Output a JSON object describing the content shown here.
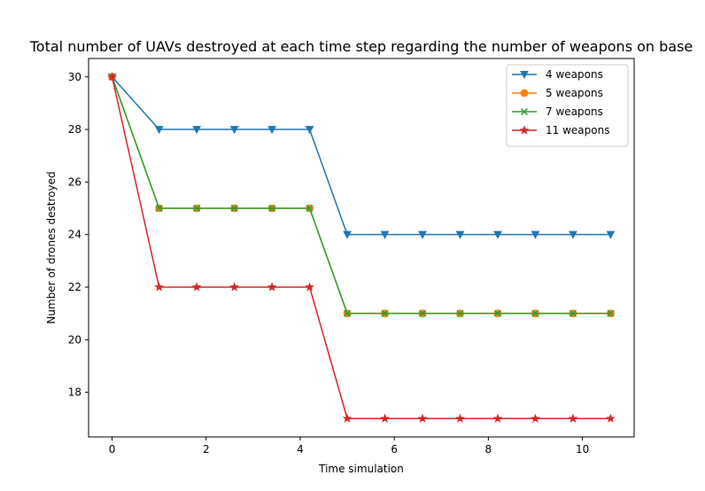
{
  "chart_data": {
    "type": "line",
    "title": "Total number of UAVs destroyed at each time step regarding the number of weapons on base",
    "xlabel": "Time simulation",
    "ylabel": "Number of drones destroyed",
    "xlim": [
      -0.5,
      11.1
    ],
    "ylim": [
      16.3,
      30.7
    ],
    "xticks": [
      0,
      2,
      4,
      6,
      8,
      10
    ],
    "yticks": [
      18,
      20,
      22,
      24,
      26,
      28,
      30
    ],
    "x": [
      0,
      1,
      1.8,
      2.6,
      3.4,
      4.2,
      5,
      5.8,
      6.6,
      7.4,
      8.2,
      9,
      9.8,
      10.6
    ],
    "legend_position": "top-right",
    "grid": false,
    "series": [
      {
        "name": "4 weapons",
        "color": "#1f77b4",
        "marker": "triangle-down",
        "values": [
          30,
          28,
          28,
          28,
          28,
          28,
          24,
          24,
          24,
          24,
          24,
          24,
          24,
          24
        ]
      },
      {
        "name": "5 weapons",
        "color": "#ff7f0e",
        "marker": "circle",
        "values": [
          30,
          25,
          25,
          25,
          25,
          25,
          21,
          21,
          21,
          21,
          21,
          21,
          21,
          21
        ]
      },
      {
        "name": "7 weapons",
        "color": "#2ca02c",
        "marker": "x",
        "values": [
          30,
          25,
          25,
          25,
          25,
          25,
          21,
          21,
          21,
          21,
          21,
          21,
          21,
          21
        ]
      },
      {
        "name": "11 weapons",
        "color": "#d62728",
        "marker": "star",
        "values": [
          30,
          22,
          22,
          22,
          22,
          22,
          17,
          17,
          17,
          17,
          17,
          17,
          17,
          17
        ]
      }
    ]
  }
}
